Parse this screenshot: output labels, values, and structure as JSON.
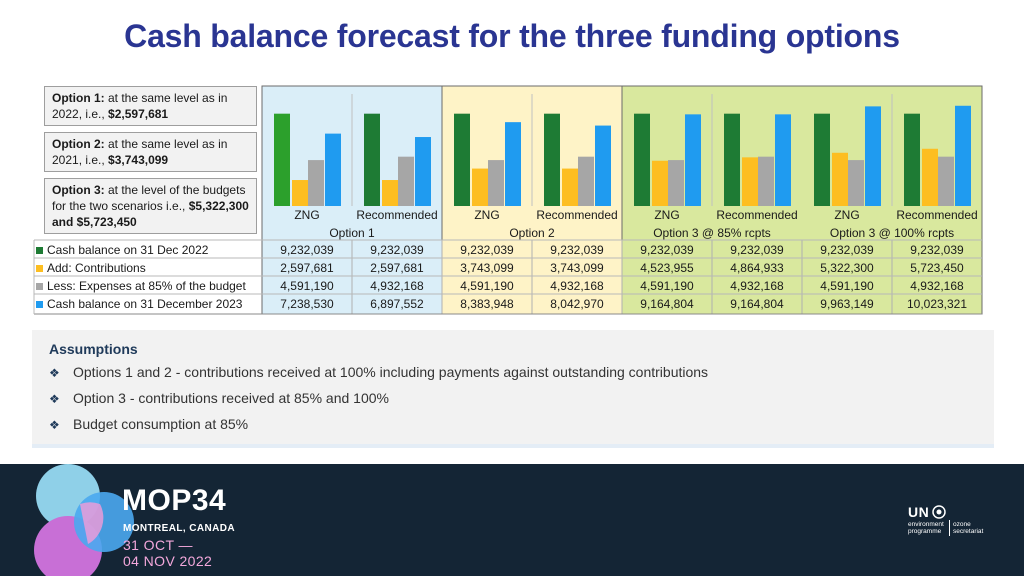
{
  "title": "Cash balance forecast for the three funding options",
  "options": [
    {
      "label": "Option 1:",
      "text": " at the same level as in 2022, i.e., ",
      "value": "$2,597,681"
    },
    {
      "label": "Option 2:",
      "text": " at the same level as in 2021, i.e., ",
      "value": "$3,743,099"
    },
    {
      "label": "Option 3:",
      "text": " at the level of the budgets for the two scenarios i.e., ",
      "value": "$5,322,300 and $5,723,450"
    }
  ],
  "chart_data": {
    "type": "bar",
    "groups": [
      "Option 1",
      "Option 2",
      "Option 3 @ 85% rcpts",
      "Option 3 @ 100% rcpts"
    ],
    "categories": [
      "ZNG",
      "Recommended",
      "ZNG",
      "Recommended",
      "ZNG",
      "Recommended",
      "ZNG",
      "Recommended"
    ],
    "series": [
      {
        "name": "Cash balance on 31 Dec 2022",
        "color": "#1e7b34",
        "values": [
          9232039,
          9232039,
          9232039,
          9232039,
          9232039,
          9232039,
          9232039,
          9232039
        ],
        "labels": [
          "9,232,039",
          "9,232,039",
          "9,232,039",
          "9,232,039",
          "9,232,039",
          "9,232,039",
          "9,232,039",
          "9,232,039"
        ]
      },
      {
        "name": "Add: Contributions",
        "color": "#fdbe21",
        "values": [
          2597681,
          2597681,
          3743099,
          3743099,
          4523955,
          4864933,
          5322300,
          5723450
        ],
        "labels": [
          "2,597,681",
          "2,597,681",
          "3,743,099",
          "3,743,099",
          "4,523,955",
          "4,864,933",
          "5,322,300",
          "5,723,450"
        ]
      },
      {
        "name": "Less: Expenses at 85% of the budget",
        "color": "#a6a6a6",
        "values": [
          4591190,
          4932168,
          4591190,
          4932168,
          4591190,
          4932168,
          4591190,
          4932168
        ],
        "labels": [
          "4,591,190",
          "4,932,168",
          "4,591,190",
          "4,932,168",
          "4,591,190",
          "4,932,168",
          "4,591,190",
          "4,932,168"
        ]
      },
      {
        "name": "Cash balance on 31 December 2023",
        "color": "#1f9bf0",
        "values": [
          7238530,
          6897552,
          8383948,
          8042970,
          9164804,
          9164804,
          9963149,
          10023321
        ],
        "labels": [
          "7,238,530",
          "6,897,552",
          "8,383,948",
          "8,042,970",
          "9,164,804",
          "9,164,804",
          "9,963,149",
          "10,023,321"
        ]
      }
    ],
    "first_bar_color": "#2ca02c",
    "group_backgrounds": [
      "#daeef8",
      "#fef3c7",
      "#d9e89e",
      "#d9e89e"
    ],
    "ylim": [
      0,
      11000000
    ],
    "grid": false,
    "legend": "left-table"
  },
  "assumptions": {
    "title": "Assumptions",
    "items": [
      "Options 1 and 2 - contributions received at 100% including payments against outstanding contributions",
      "Option 3 - contributions received at 85% and 100%",
      "Budget consumption at 85%"
    ]
  },
  "footer": {
    "event": "MOP34",
    "city": "MONTREAL, CANADA",
    "date_line1": "31 OCT —",
    "date_line2": "04 NOV 2022",
    "org": "UN",
    "org_sub1": "environment",
    "org_sub2": "programme",
    "org_sub3": "ozone",
    "org_sub4": "secretariat"
  }
}
